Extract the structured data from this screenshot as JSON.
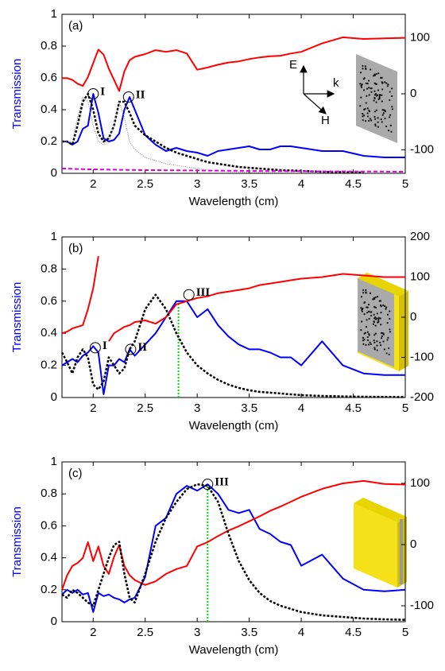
{
  "chart_data": [
    {
      "type": "line",
      "title": "(a)",
      "ylabel": "Transmission",
      "xlabel": "Wavelength (cm)",
      "x": [
        1.7,
        1.75,
        1.8,
        1.85,
        1.9,
        1.95,
        2.0,
        2.05,
        2.1,
        2.15,
        2.2,
        2.25,
        2.3,
        2.35,
        2.4,
        2.5,
        2.6,
        2.7,
        2.8,
        2.9,
        3.0,
        3.1,
        3.2,
        3.3,
        3.4,
        3.5,
        3.6,
        3.7,
        3.8,
        3.9,
        4.0,
        4.2,
        4.4,
        4.6,
        4.8,
        5.0
      ],
      "xlim": [
        1.7,
        5
      ],
      "xticks": [
        2,
        2.5,
        3,
        3.5,
        4,
        4.5,
        5
      ],
      "ylim": [
        0,
        1
      ],
      "yticks": [
        0,
        0.2,
        0.4,
        0.6,
        0.8,
        1
      ],
      "y2lim": [
        -142,
        142
      ],
      "y2ticks": [
        -100,
        0,
        100
      ],
      "series": [
        {
          "color": "#0000ff",
          "style": "solid",
          "values": [
            0.2,
            0.2,
            0.18,
            0.2,
            0.28,
            0.3,
            0.5,
            0.38,
            0.22,
            0.2,
            0.21,
            0.25,
            0.4,
            0.48,
            0.4,
            0.24,
            0.18,
            0.14,
            0.16,
            0.14,
            0.13,
            0.11,
            0.14,
            0.15,
            0.16,
            0.17,
            0.15,
            0.15,
            0.17,
            0.17,
            0.16,
            0.14,
            0.14,
            0.11,
            0.1,
            0.1
          ]
        },
        {
          "color": "#ff0000",
          "style": "solid",
          "axis": "y2",
          "values": [
            28,
            28,
            25,
            18,
            14,
            30,
            55,
            79,
            70,
            45,
            25,
            5,
            40,
            60,
            66,
            71,
            78,
            75,
            78,
            72,
            43,
            47,
            52,
            56,
            58,
            62,
            65,
            67,
            68,
            72,
            75,
            90,
            101,
            98,
            99,
            100
          ]
        },
        {
          "color": "#000000",
          "style": "dotted",
          "values": [
            0.2,
            0.2,
            0.18,
            0.3,
            0.45,
            0.5,
            0.4,
            0.25,
            0.2,
            0.22,
            0.3,
            0.45,
            0.45,
            0.38,
            0.3,
            0.24,
            0.2,
            0.16,
            0.13,
            0.11,
            0.09,
            0.07,
            0.06,
            0.05,
            0.04,
            0.035,
            0.03,
            0.025,
            0.02,
            0.018,
            0.015,
            0.01,
            0.007,
            0.005,
            null,
            null
          ]
        },
        {
          "color": "#888888",
          "style": "fine",
          "values": [
            0.2,
            0.2,
            0.2,
            0.35,
            0.48,
            0.45,
            0.3,
            0.2,
            0.18,
            0.2,
            0.3,
            0.45,
            0.35,
            0.2,
            0.15,
            0.1,
            0.08,
            0.06,
            0.05,
            0.04,
            0.03,
            0.02,
            0.015,
            0.01,
            0.008,
            0.006,
            0.005,
            0.004,
            0.003,
            0.002,
            0.002,
            null,
            null,
            null,
            null,
            null
          ]
        },
        {
          "color": "#dd00dd",
          "style": "dashed",
          "values": [
            0.03,
            0.03,
            0.028,
            0.027,
            0.026,
            0.025,
            0.025,
            0.024,
            0.024,
            0.023,
            0.023,
            0.022,
            0.022,
            0.021,
            0.021,
            0.02,
            0.02,
            0.019,
            0.019,
            0.018,
            0.018,
            0.017,
            0.017,
            0.016,
            0.016,
            0.015,
            0.015,
            0.014,
            0.014,
            0.013,
            0.013,
            0.012,
            0.012,
            0.011,
            0.011,
            0.01
          ]
        }
      ],
      "markers": [
        {
          "label": "I",
          "x": 2.0,
          "y": 0.5
        },
        {
          "label": "II",
          "x": 2.34,
          "y": 0.48
        }
      ],
      "field_labels": [
        "E",
        "k",
        "H"
      ]
    },
    {
      "type": "line",
      "title": "(b)",
      "ylabel": "Transmission",
      "xlabel": "Wavelength (cm)",
      "x": [
        1.7,
        1.75,
        1.8,
        1.85,
        1.9,
        1.95,
        2.0,
        2.05,
        2.1,
        2.15,
        2.2,
        2.25,
        2.3,
        2.35,
        2.4,
        2.5,
        2.6,
        2.7,
        2.8,
        2.9,
        3.0,
        3.1,
        3.2,
        3.3,
        3.4,
        3.5,
        3.6,
        3.7,
        3.8,
        3.9,
        4.0,
        4.2,
        4.4,
        4.6,
        4.8,
        5.0
      ],
      "xlim": [
        1.7,
        5
      ],
      "xticks": [
        2,
        2.5,
        3,
        3.5,
        4,
        4.5,
        5
      ],
      "ylim": [
        0,
        1
      ],
      "yticks": [
        0,
        0.2,
        0.4,
        0.6,
        0.8,
        1
      ],
      "y2lim": [
        -200,
        200
      ],
      "y2ticks": [
        -200,
        -100,
        0,
        100,
        200
      ],
      "series": [
        {
          "color": "#0000ff",
          "style": "solid",
          "values": [
            0.2,
            0.22,
            0.24,
            0.22,
            0.26,
            0.28,
            0.32,
            0.28,
            0.02,
            0.2,
            0.2,
            0.24,
            0.22,
            0.3,
            0.26,
            0.33,
            0.4,
            0.5,
            0.6,
            0.6,
            0.5,
            0.55,
            0.45,
            0.38,
            0.33,
            0.3,
            0.3,
            0.28,
            0.25,
            0.25,
            0.2,
            0.35,
            0.2,
            0.15,
            0.14,
            0.14
          ]
        },
        {
          "color": "#ff0000",
          "style": "solid",
          "axis": "y2",
          "values": [
            -40,
            -36,
            -28,
            -24,
            -20,
            20,
            72,
            152,
            null,
            -60,
            -40,
            -32,
            -24,
            -20,
            -12,
            -8,
            -16,
            0,
            32,
            40,
            48,
            52,
            60,
            64,
            68,
            72,
            80,
            84,
            88,
            92,
            96,
            100,
            108,
            104,
            100,
            100
          ]
        },
        {
          "color": "#000000",
          "style": "dotted",
          "values": [
            0.28,
            0.22,
            0.15,
            0.25,
            0.3,
            0.25,
            0.08,
            0.05,
            0.1,
            0.25,
            0.2,
            0.15,
            0.18,
            0.3,
            0.35,
            0.55,
            0.64,
            0.55,
            0.4,
            0.28,
            0.2,
            0.15,
            0.11,
            0.08,
            0.06,
            0.045,
            0.035,
            0.03,
            0.025,
            0.02,
            0.015,
            0.01,
            0.007,
            0.005,
            0.004,
            0.003
          ]
        }
      ],
      "markers": [
        {
          "label": "I",
          "x": 2.02,
          "y": 0.31
        },
        {
          "label": "II",
          "x": 2.36,
          "y": 0.3
        },
        {
          "label": "III",
          "x": 2.92,
          "y": 0.64
        }
      ],
      "vline": {
        "x": 2.82,
        "y": 0.61,
        "color": "#00dd00"
      }
    },
    {
      "type": "line",
      "title": "(c)",
      "ylabel": "Transmission",
      "xlabel": "Wavelength (cm)",
      "x": [
        1.7,
        1.75,
        1.8,
        1.85,
        1.9,
        1.95,
        2.0,
        2.05,
        2.1,
        2.15,
        2.2,
        2.25,
        2.3,
        2.35,
        2.4,
        2.5,
        2.6,
        2.7,
        2.8,
        2.9,
        3.0,
        3.1,
        3.2,
        3.3,
        3.4,
        3.5,
        3.6,
        3.7,
        3.8,
        3.9,
        4.0,
        4.2,
        4.4,
        4.6,
        4.8,
        5.0
      ],
      "xlim": [
        1.7,
        5
      ],
      "xticks": [
        2,
        2.5,
        3,
        3.5,
        4,
        4.5,
        5
      ],
      "ylim": [
        0,
        1
      ],
      "yticks": [
        0,
        0.2,
        0.4,
        0.6,
        0.8,
        1
      ],
      "y2lim": [
        -126,
        135
      ],
      "y2ticks": [
        -100,
        0,
        100
      ],
      "series": [
        {
          "color": "#0000ff",
          "style": "solid",
          "values": [
            0.17,
            0.2,
            0.18,
            0.2,
            0.17,
            0.18,
            0.06,
            0.18,
            0.16,
            0.17,
            0.15,
            0.14,
            0.12,
            0.14,
            0.15,
            0.28,
            0.6,
            0.65,
            0.8,
            0.85,
            0.82,
            0.86,
            0.8,
            0.7,
            0.68,
            0.7,
            0.58,
            0.55,
            0.5,
            0.48,
            0.35,
            0.42,
            0.27,
            0.2,
            0.19,
            0.2
          ]
        },
        {
          "color": "#ff0000",
          "style": "solid",
          "axis": "y2",
          "values": [
            -74,
            -50,
            -35,
            -30,
            -22,
            4,
            -27,
            -3,
            -35,
            -48,
            -20,
            -1,
            -35,
            -50,
            -58,
            -66,
            -60,
            -48,
            -40,
            -35,
            -3,
            4,
            14,
            23,
            30,
            38,
            46,
            55,
            62,
            70,
            78,
            91,
            100,
            104,
            99,
            98
          ]
        },
        {
          "color": "#000000",
          "style": "dotted",
          "values": [
            0.17,
            0.15,
            0.2,
            0.18,
            0.15,
            0.12,
            0.1,
            0.2,
            0.3,
            0.4,
            0.48,
            0.5,
            0.3,
            0.15,
            0.12,
            0.3,
            0.5,
            0.65,
            0.75,
            0.83,
            0.86,
            0.85,
            0.75,
            0.55,
            0.38,
            0.26,
            0.18,
            0.13,
            0.1,
            0.08,
            0.06,
            0.04,
            0.03,
            0.02,
            0.015,
            0.012
          ]
        }
      ],
      "markers": [
        {
          "label": "III",
          "x": 3.1,
          "y": 0.86
        }
      ],
      "vline": {
        "x": 3.1,
        "y": 0.86,
        "color": "#00dd00"
      }
    }
  ]
}
